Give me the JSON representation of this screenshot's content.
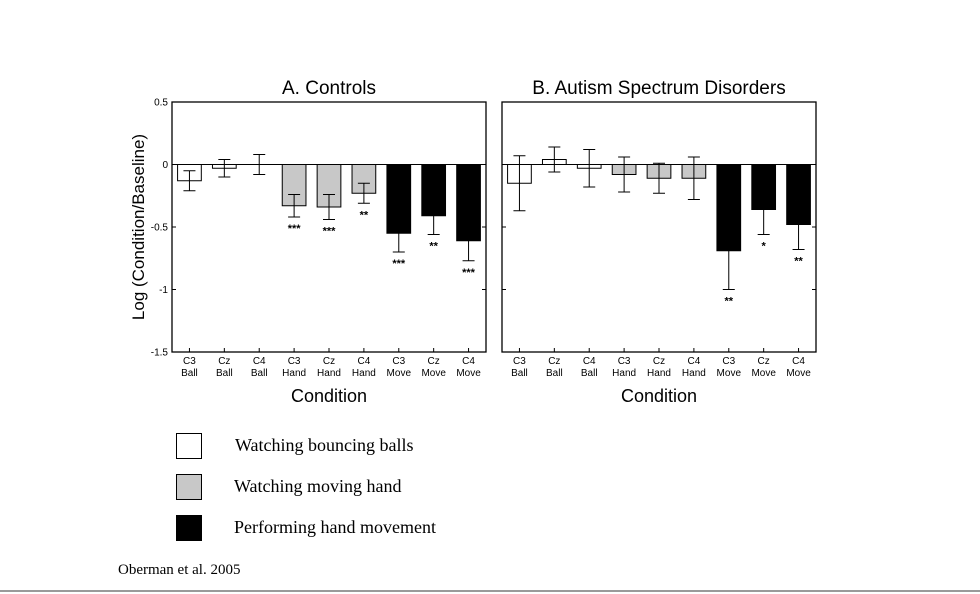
{
  "colors": {
    "watching_balls": "#ffffff",
    "watching_hand": "#c8c8c8",
    "performing": "#000000"
  },
  "chart_data": [
    {
      "type": "bar",
      "title": "A. Controls",
      "xlabel": "Condition",
      "ylabel": "Log (Condition/Baseline)",
      "ylim": [
        -1.5,
        0.5
      ],
      "yticks": [
        "0.5",
        "0",
        "-0.5",
        "-1",
        "-1.5"
      ],
      "grid": false,
      "categories": [
        [
          "C3",
          "Ball"
        ],
        [
          "Cz",
          "Ball"
        ],
        [
          "C4",
          "Ball"
        ],
        [
          "C3",
          "Hand"
        ],
        [
          "Cz",
          "Hand"
        ],
        [
          "C4",
          "Hand"
        ],
        [
          "C3",
          "Move"
        ],
        [
          "Cz",
          "Move"
        ],
        [
          "C4",
          "Move"
        ]
      ],
      "values": [
        -0.13,
        -0.03,
        0.0,
        -0.33,
        -0.34,
        -0.23,
        -0.55,
        -0.41,
        -0.61
      ],
      "errors": [
        0.08,
        0.07,
        0.08,
        0.09,
        0.1,
        0.08,
        0.15,
        0.15,
        0.16
      ],
      "groups": [
        "watching_balls",
        "watching_balls",
        "watching_balls",
        "watching_hand",
        "watching_hand",
        "watching_hand",
        "performing",
        "performing",
        "performing"
      ],
      "significance": [
        "",
        "",
        "",
        "***",
        "***",
        "**",
        "***",
        "**",
        "***"
      ]
    },
    {
      "type": "bar",
      "title": "B. Autism Spectrum Disorders",
      "xlabel": "Condition",
      "ylim": [
        -1.5,
        0.5
      ],
      "grid": false,
      "categories": [
        [
          "C3",
          "Ball"
        ],
        [
          "Cz",
          "Ball"
        ],
        [
          "C4",
          "Ball"
        ],
        [
          "C3",
          "Hand"
        ],
        [
          "Cz",
          "Hand"
        ],
        [
          "C4",
          "Hand"
        ],
        [
          "C3",
          "Move"
        ],
        [
          "Cz",
          "Move"
        ],
        [
          "C4",
          "Move"
        ]
      ],
      "values": [
        -0.15,
        0.04,
        -0.03,
        -0.08,
        -0.11,
        -0.11,
        -0.69,
        -0.36,
        -0.48
      ],
      "errors": [
        0.22,
        0.1,
        0.15,
        0.14,
        0.12,
        0.17,
        0.31,
        0.2,
        0.2
      ],
      "groups": [
        "watching_balls",
        "watching_balls",
        "watching_balls",
        "watching_hand",
        "watching_hand",
        "watching_hand",
        "performing",
        "performing",
        "performing"
      ],
      "significance": [
        "",
        "",
        "",
        "",
        "",
        "",
        "**",
        "*",
        "**"
      ]
    }
  ],
  "legend": [
    {
      "label": "Watching bouncing balls",
      "group": "watching_balls"
    },
    {
      "label": "Watching moving hand",
      "group": "watching_hand"
    },
    {
      "label": "Performing hand movement",
      "group": "performing"
    }
  ],
  "citation": "Oberman et al. 2005"
}
